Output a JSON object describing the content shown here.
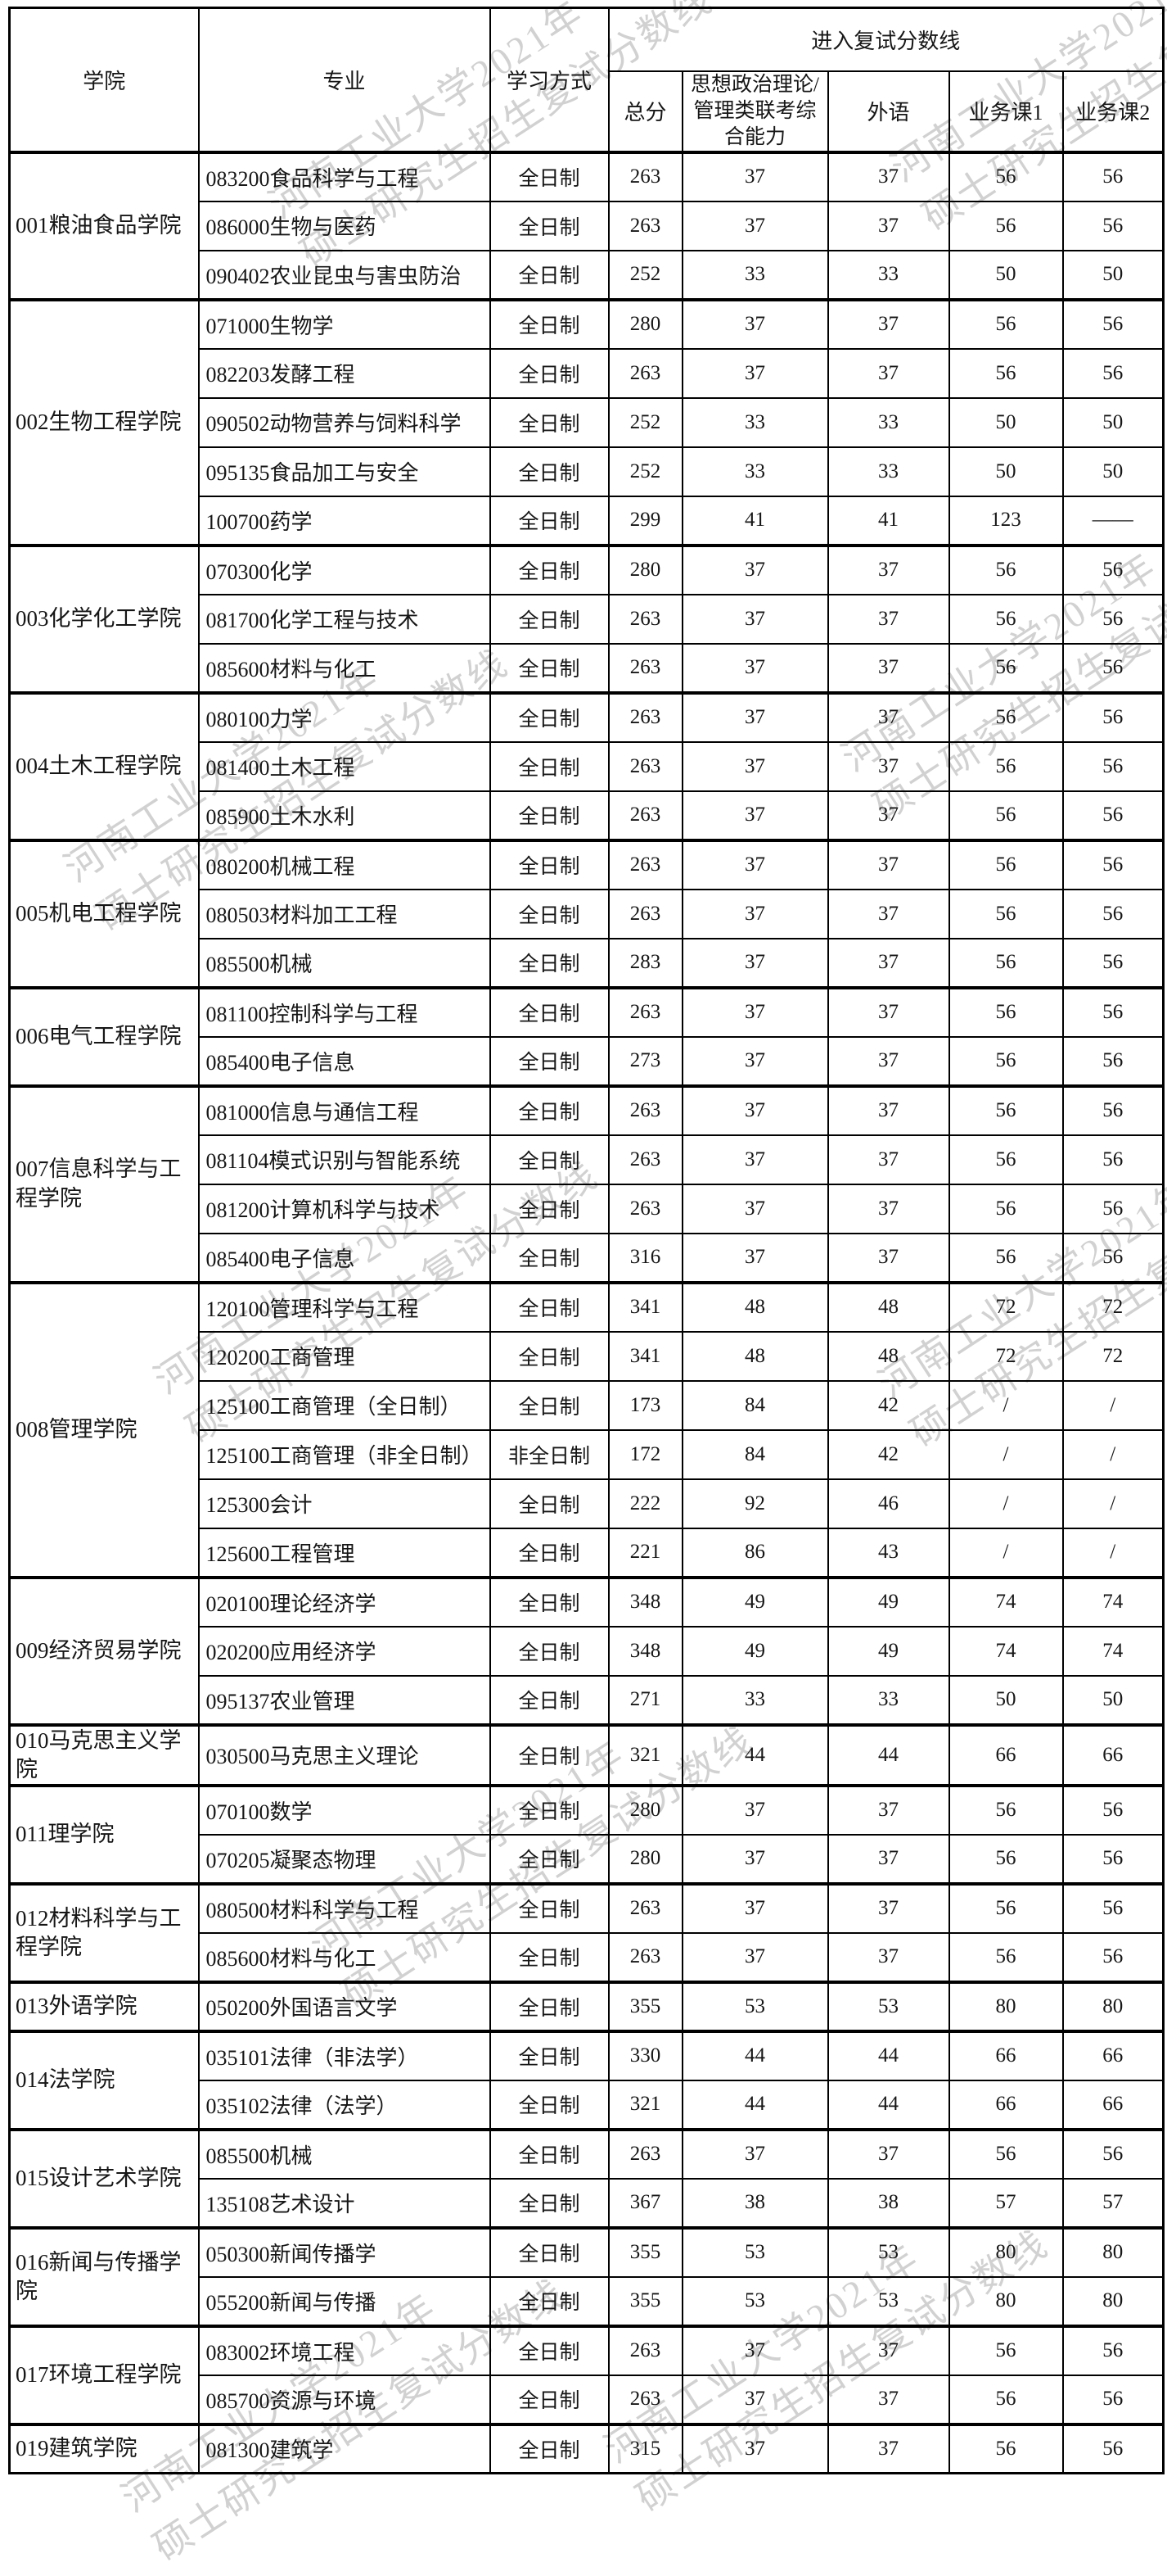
{
  "watermark": {
    "line1": "河南工业大学2021年",
    "line2": "硕士研究生招生复试分数线"
  },
  "table": {
    "headers": {
      "college": "学院",
      "major": "专业",
      "study_mode": "学习方式",
      "score_group": "进入复试分数线",
      "sub": [
        "总分",
        "思想政治理论/管理类联考综合能力",
        "外语",
        "业务课1",
        "业务课2"
      ]
    },
    "groups": [
      {
        "college": "001粮油食品学院",
        "rows": [
          {
            "major": "083200食品科学与工程",
            "mode": "全日制",
            "scores": [
              "263",
              "37",
              "37",
              "56",
              "56"
            ]
          },
          {
            "major": "086000生物与医药",
            "mode": "全日制",
            "scores": [
              "263",
              "37",
              "37",
              "56",
              "56"
            ]
          },
          {
            "major": "090402农业昆虫与害虫防治",
            "mode": "全日制",
            "scores": [
              "252",
              "33",
              "33",
              "50",
              "50"
            ]
          }
        ]
      },
      {
        "college": "002生物工程学院",
        "rows": [
          {
            "major": "071000生物学",
            "mode": "全日制",
            "scores": [
              "280",
              "37",
              "37",
              "56",
              "56"
            ]
          },
          {
            "major": "082203发酵工程",
            "mode": "全日制",
            "scores": [
              "263",
              "37",
              "37",
              "56",
              "56"
            ]
          },
          {
            "major": "090502动物营养与饲料科学",
            "mode": "全日制",
            "scores": [
              "252",
              "33",
              "33",
              "50",
              "50"
            ]
          },
          {
            "major": "095135食品加工与安全",
            "mode": "全日制",
            "scores": [
              "252",
              "33",
              "33",
              "50",
              "50"
            ]
          },
          {
            "major": "100700药学",
            "mode": "全日制",
            "scores": [
              "299",
              "41",
              "41",
              "123",
              "——"
            ]
          }
        ]
      },
      {
        "college": "003化学化工学院",
        "rows": [
          {
            "major": "070300化学",
            "mode": "全日制",
            "scores": [
              "280",
              "37",
              "37",
              "56",
              "56"
            ]
          },
          {
            "major": "081700化学工程与技术",
            "mode": "全日制",
            "scores": [
              "263",
              "37",
              "37",
              "56",
              "56"
            ]
          },
          {
            "major": "085600材料与化工",
            "mode": "全日制",
            "scores": [
              "263",
              "37",
              "37",
              "56",
              "56"
            ]
          }
        ]
      },
      {
        "college": "004土木工程学院",
        "rows": [
          {
            "major": "080100力学",
            "mode": "全日制",
            "scores": [
              "263",
              "37",
              "37",
              "56",
              "56"
            ]
          },
          {
            "major": "081400土木工程",
            "mode": "全日制",
            "scores": [
              "263",
              "37",
              "37",
              "56",
              "56"
            ]
          },
          {
            "major": "085900土木水利",
            "mode": "全日制",
            "scores": [
              "263",
              "37",
              "37",
              "56",
              "56"
            ]
          }
        ]
      },
      {
        "college": "005机电工程学院",
        "rows": [
          {
            "major": "080200机械工程",
            "mode": "全日制",
            "scores": [
              "263",
              "37",
              "37",
              "56",
              "56"
            ]
          },
          {
            "major": "080503材料加工工程",
            "mode": "全日制",
            "scores": [
              "263",
              "37",
              "37",
              "56",
              "56"
            ]
          },
          {
            "major": "085500机械",
            "mode": "全日制",
            "scores": [
              "283",
              "37",
              "37",
              "56",
              "56"
            ]
          }
        ]
      },
      {
        "college": "006电气工程学院",
        "rows": [
          {
            "major": "081100控制科学与工程",
            "mode": "全日制",
            "scores": [
              "263",
              "37",
              "37",
              "56",
              "56"
            ]
          },
          {
            "major": "085400电子信息",
            "mode": "全日制",
            "scores": [
              "273",
              "37",
              "37",
              "56",
              "56"
            ]
          }
        ]
      },
      {
        "college": "007信息科学与工程学院",
        "rows": [
          {
            "major": "081000信息与通信工程",
            "mode": "全日制",
            "scores": [
              "263",
              "37",
              "37",
              "56",
              "56"
            ]
          },
          {
            "major": "081104模式识别与智能系统",
            "mode": "全日制",
            "scores": [
              "263",
              "37",
              "37",
              "56",
              "56"
            ]
          },
          {
            "major": "081200计算机科学与技术",
            "mode": "全日制",
            "scores": [
              "263",
              "37",
              "37",
              "56",
              "56"
            ]
          },
          {
            "major": "085400电子信息",
            "mode": "全日制",
            "scores": [
              "316",
              "37",
              "37",
              "56",
              "56"
            ]
          }
        ]
      },
      {
        "college": "008管理学院",
        "rows": [
          {
            "major": "120100管理科学与工程",
            "mode": "全日制",
            "scores": [
              "341",
              "48",
              "48",
              "72",
              "72"
            ]
          },
          {
            "major": "120200工商管理",
            "mode": "全日制",
            "scores": [
              "341",
              "48",
              "48",
              "72",
              "72"
            ]
          },
          {
            "major": "125100工商管理（全日制）",
            "mode": "全日制",
            "scores": [
              "173",
              "84",
              "42",
              "/",
              "/"
            ]
          },
          {
            "major": "125100工商管理（非全日制）",
            "mode": "非全日制",
            "scores": [
              "172",
              "84",
              "42",
              "/",
              "/"
            ]
          },
          {
            "major": "125300会计",
            "mode": "全日制",
            "scores": [
              "222",
              "92",
              "46",
              "/",
              "/"
            ]
          },
          {
            "major": "125600工程管理",
            "mode": "全日制",
            "scores": [
              "221",
              "86",
              "43",
              "/",
              "/"
            ]
          }
        ]
      },
      {
        "college": "009经济贸易学院",
        "rows": [
          {
            "major": "020100理论经济学",
            "mode": "全日制",
            "scores": [
              "348",
              "49",
              "49",
              "74",
              "74"
            ]
          },
          {
            "major": "020200应用经济学",
            "mode": "全日制",
            "scores": [
              "348",
              "49",
              "49",
              "74",
              "74"
            ]
          },
          {
            "major": "095137农业管理",
            "mode": "全日制",
            "scores": [
              "271",
              "33",
              "33",
              "50",
              "50"
            ]
          }
        ]
      },
      {
        "college": "010马克思主义学院",
        "rows": [
          {
            "major": "030500马克思主义理论",
            "mode": "全日制",
            "scores": [
              "321",
              "44",
              "44",
              "66",
              "66"
            ]
          }
        ]
      },
      {
        "college": "011理学院",
        "rows": [
          {
            "major": "070100数学",
            "mode": "全日制",
            "scores": [
              "280",
              "37",
              "37",
              "56",
              "56"
            ]
          },
          {
            "major": "070205凝聚态物理",
            "mode": "全日制",
            "scores": [
              "280",
              "37",
              "37",
              "56",
              "56"
            ]
          }
        ]
      },
      {
        "college": "012材料科学与工程学院",
        "rows": [
          {
            "major": "080500材料科学与工程",
            "mode": "全日制",
            "scores": [
              "263",
              "37",
              "37",
              "56",
              "56"
            ]
          },
          {
            "major": "085600材料与化工",
            "mode": "全日制",
            "scores": [
              "263",
              "37",
              "37",
              "56",
              "56"
            ]
          }
        ]
      },
      {
        "college": "013外语学院",
        "rows": [
          {
            "major": "050200外国语言文学",
            "mode": "全日制",
            "scores": [
              "355",
              "53",
              "53",
              "80",
              "80"
            ]
          }
        ]
      },
      {
        "college": "014法学院",
        "rows": [
          {
            "major": "035101法律（非法学）",
            "mode": "全日制",
            "scores": [
              "330",
              "44",
              "44",
              "66",
              "66"
            ]
          },
          {
            "major": "035102法律（法学）",
            "mode": "全日制",
            "scores": [
              "321",
              "44",
              "44",
              "66",
              "66"
            ]
          }
        ]
      },
      {
        "college": "015设计艺术学院",
        "rows": [
          {
            "major": "085500机械",
            "mode": "全日制",
            "scores": [
              "263",
              "37",
              "37",
              "56",
              "56"
            ]
          },
          {
            "major": "135108艺术设计",
            "mode": "全日制",
            "scores": [
              "367",
              "38",
              "38",
              "57",
              "57"
            ]
          }
        ]
      },
      {
        "college": "016新闻与传播学院",
        "rows": [
          {
            "major": "050300新闻传播学",
            "mode": "全日制",
            "scores": [
              "355",
              "53",
              "53",
              "80",
              "80"
            ]
          },
          {
            "major": "055200新闻与传播",
            "mode": "全日制",
            "scores": [
              "355",
              "53",
              "53",
              "80",
              "80"
            ]
          }
        ]
      },
      {
        "college": "017环境工程学院",
        "rows": [
          {
            "major": "083002环境工程",
            "mode": "全日制",
            "scores": [
              "263",
              "37",
              "37",
              "56",
              "56"
            ]
          },
          {
            "major": "085700资源与环境",
            "mode": "全日制",
            "scores": [
              "263",
              "37",
              "37",
              "56",
              "56"
            ]
          }
        ]
      },
      {
        "college": "019建筑学院",
        "rows": [
          {
            "major": "081300建筑学",
            "mode": "全日制",
            "scores": [
              "315",
              "37",
              "37",
              "56",
              "56"
            ]
          }
        ]
      }
    ]
  }
}
